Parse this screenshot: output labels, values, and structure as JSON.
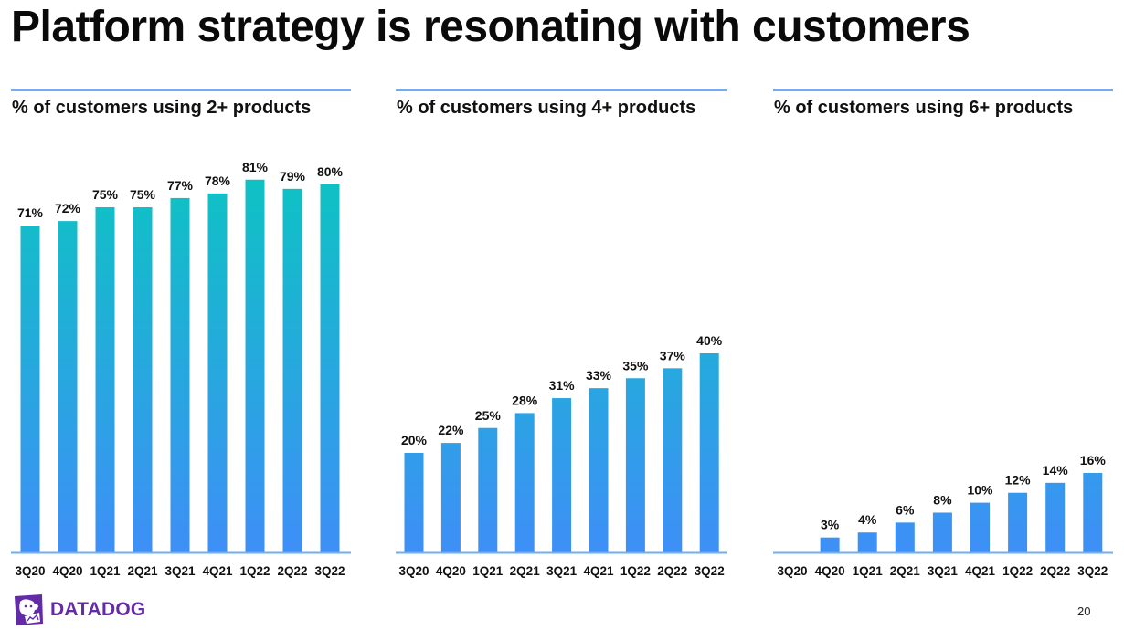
{
  "slide": {
    "title": "Platform strategy is resonating with customers",
    "logo_text": "DATADOG",
    "logo_icon": "datadog-dog-icon",
    "page_number": "20",
    "colors": {
      "bar_top": "#0cc4c2",
      "bar_bottom": "#3e8ff7",
      "baseline": "#6eaef5",
      "rule": "#6eaef5",
      "brand": "#632ca6"
    }
  },
  "chart_data": [
    {
      "type": "bar",
      "title": "% of customers using 2+ products",
      "categories": [
        "3Q20",
        "4Q20",
        "1Q21",
        "2Q21",
        "3Q21",
        "4Q21",
        "1Q22",
        "2Q22",
        "3Q22"
      ],
      "values": [
        71,
        72,
        75,
        75,
        77,
        78,
        81,
        79,
        80
      ],
      "labels": [
        "71%",
        "72%",
        "75%",
        "75%",
        "77%",
        "78%",
        "81%",
        "79%",
        "80%"
      ],
      "xlabel": "",
      "ylabel": "",
      "ylim": [
        0,
        100
      ],
      "grid": false,
      "legend": "none"
    },
    {
      "type": "bar",
      "title": "% of customers using 4+ products",
      "categories": [
        "3Q20",
        "4Q20",
        "1Q21",
        "2Q21",
        "3Q21",
        "4Q21",
        "1Q22",
        "2Q22",
        "3Q22"
      ],
      "values": [
        20,
        22,
        25,
        28,
        31,
        33,
        35,
        37,
        40
      ],
      "labels": [
        "20%",
        "22%",
        "25%",
        "28%",
        "31%",
        "33%",
        "35%",
        "37%",
        "40%"
      ],
      "xlabel": "",
      "ylabel": "",
      "ylim": [
        0,
        100
      ],
      "grid": false,
      "legend": "none"
    },
    {
      "type": "bar",
      "title": "% of customers using 6+ products",
      "categories": [
        "3Q20",
        "4Q20",
        "1Q21",
        "2Q21",
        "3Q21",
        "4Q21",
        "1Q22",
        "2Q22",
        "3Q22"
      ],
      "values": [
        null,
        3,
        4,
        6,
        8,
        10,
        12,
        14,
        16
      ],
      "labels": [
        "",
        "3%",
        "4%",
        "6%",
        "8%",
        "10%",
        "12%",
        "14%",
        "16%"
      ],
      "xlabel": "",
      "ylabel": "",
      "ylim": [
        0,
        100
      ],
      "grid": false,
      "legend": "none"
    }
  ]
}
